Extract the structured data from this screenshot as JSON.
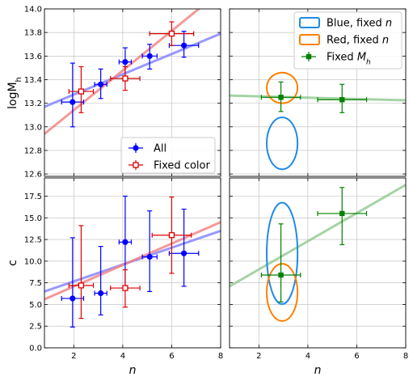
{
  "chart_data": [
    {
      "panel": "top-left",
      "type": "scatter",
      "xlim": [
        0.8,
        8
      ],
      "ylim": [
        12.58,
        14.0
      ],
      "ylabel": "logM_h",
      "xlabel": "",
      "grid": true,
      "xticks": [
        "2",
        "4",
        "6",
        "8"
      ],
      "yticks": [
        "12.6",
        "12.8",
        "13.0",
        "13.2",
        "13.4",
        "13.6",
        "13.8",
        "14.0"
      ],
      "legend_position": "lower-right",
      "legend": [
        {
          "label": "All",
          "marker": "circle-filled",
          "color": "#0000ff"
        },
        {
          "label": "Fixed color",
          "marker": "square-open",
          "color": "#dd0000"
        }
      ],
      "series": [
        {
          "name": "All",
          "color": "#0000ff",
          "marker": "circle-filled",
          "points": [
            {
              "x": 1.95,
              "y": 13.21,
              "xerr": [
                0.45,
                0.45
              ],
              "yerr": [
                0.21,
                0.33
              ]
            },
            {
              "x": 3.1,
              "y": 13.36,
              "xerr": [
                0.25,
                0.25
              ],
              "yerr": [
                0.12,
                0.13
              ]
            },
            {
              "x": 4.1,
              "y": 13.55,
              "xerr": [
                0.25,
                0.25
              ],
              "yerr": [
                0.12,
                0.12
              ]
            },
            {
              "x": 5.1,
              "y": 13.6,
              "xerr": [
                0.3,
                0.3
              ],
              "yerr": [
                0.11,
                0.1
              ]
            },
            {
              "x": 6.5,
              "y": 13.69,
              "xerr": [
                0.6,
                0.6
              ],
              "yerr": [
                0.1,
                0.12
              ]
            }
          ],
          "fit": {
            "color": "#8080ff",
            "x": [
              0.8,
              8
            ],
            "y": [
              13.17,
              13.79
            ]
          }
        },
        {
          "name": "Fixed color",
          "color": "#dd0000",
          "marker": "square-open",
          "points": [
            {
              "x": 2.3,
              "y": 13.3,
              "xerr": [
                0.5,
                0.5
              ],
              "yerr": [
                0.18,
                0.21
              ]
            },
            {
              "x": 4.1,
              "y": 13.41,
              "xerr": [
                0.6,
                0.6
              ],
              "yerr": [
                0.1,
                0.1
              ]
            },
            {
              "x": 6.0,
              "y": 13.79,
              "xerr": [
                0.9,
                0.9
              ],
              "yerr": [
                0.1,
                0.1
              ]
            }
          ],
          "fit": {
            "color": "#f08080",
            "x": [
              0.8,
              8
            ],
            "y": [
              12.94,
              14.15
            ]
          }
        }
      ]
    },
    {
      "panel": "top-right",
      "type": "scatter",
      "xlim": [
        0.8,
        8
      ],
      "ylim": [
        12.58,
        14.0
      ],
      "xlabel": "",
      "ylabel": "",
      "grid": true,
      "legend_position": "upper-right",
      "legend": [
        {
          "label": "Blue, fixed n",
          "marker": "ellipse",
          "color": "#1f8be6"
        },
        {
          "label": "Red, fixed n",
          "marker": "ellipse",
          "color": "#ff8000"
        },
        {
          "label": "Fixed M_h",
          "marker": "square-filled",
          "color": "#008000"
        }
      ],
      "contours": [
        {
          "name": "Blue, fixed n",
          "color": "#1f8be6",
          "cx": 2.95,
          "cy": 12.86,
          "rx": 1.05,
          "ry": 0.22
        },
        {
          "name": "Red, fixed n",
          "color": "#ff8000",
          "cx": 2.95,
          "cy": 13.33,
          "rx": 1.05,
          "ry": 0.13
        }
      ],
      "series": [
        {
          "name": "Fixed M_h",
          "color": "#008000",
          "marker": "square-filled",
          "points": [
            {
              "x": 2.9,
              "y": 13.25,
              "xerr": [
                0.8,
                0.8
              ],
              "yerr": [
                0.12,
                0.13
              ]
            },
            {
              "x": 5.4,
              "y": 13.23,
              "xerr": [
                1.0,
                1.0
              ],
              "yerr": [
                0.11,
                0.13
              ]
            }
          ],
          "fit": {
            "color": "#90c890",
            "x": [
              0.8,
              8
            ],
            "y": [
              13.265,
              13.225
            ]
          }
        }
      ]
    },
    {
      "panel": "bottom-left",
      "type": "scatter",
      "xlim": [
        0.8,
        8
      ],
      "ylim": [
        0,
        19.6
      ],
      "xlabel": "n",
      "ylabel": "c",
      "grid": true,
      "xticks": [
        "2",
        "4",
        "6",
        "8"
      ],
      "yticks": [
        "0.0",
        "2.5",
        "5.0",
        "7.5",
        "10.0",
        "12.5",
        "15.0",
        "17.5"
      ],
      "series": [
        {
          "name": "All",
          "color": "#0000ff",
          "marker": "circle-filled",
          "points": [
            {
              "x": 1.95,
              "y": 5.7,
              "xerr": [
                0.45,
                0.45
              ],
              "yerr": [
                3.3,
                7.0
              ]
            },
            {
              "x": 3.1,
              "y": 6.3,
              "xerr": [
                0.25,
                0.25
              ],
              "yerr": [
                2.5,
                5.4
              ]
            },
            {
              "x": 4.1,
              "y": 12.2,
              "xerr": [
                0.25,
                0.25
              ],
              "yerr": [
                5.2,
                5.3
              ]
            },
            {
              "x": 5.1,
              "y": 10.5,
              "xerr": [
                0.3,
                0.3
              ],
              "yerr": [
                4.0,
                5.3
              ]
            },
            {
              "x": 6.5,
              "y": 10.9,
              "xerr": [
                0.6,
                0.6
              ],
              "yerr": [
                3.8,
                5.1
              ]
            }
          ],
          "fit": {
            "color": "#8080ff",
            "x": [
              0.8,
              8
            ],
            "y": [
              6.5,
              13.5
            ]
          }
        },
        {
          "name": "Fixed color",
          "color": "#dd0000",
          "marker": "square-open",
          "points": [
            {
              "x": 2.3,
              "y": 7.2,
              "xerr": [
                0.5,
                0.5
              ],
              "yerr": [
                3.8,
                6.9
              ]
            },
            {
              "x": 4.1,
              "y": 6.9,
              "xerr": [
                0.6,
                0.6
              ],
              "yerr": [
                2.2,
                2.1
              ]
            },
            {
              "x": 6.0,
              "y": 13.0,
              "xerr": [
                0.8,
                0.8
              ],
              "yerr": [
                4.4,
                4.4
              ]
            }
          ],
          "fit": {
            "color": "#f08080",
            "x": [
              0.8,
              8
            ],
            "y": [
              5.6,
              14.5
            ]
          }
        }
      ]
    },
    {
      "panel": "bottom-right",
      "type": "scatter",
      "xlim": [
        0.8,
        8
      ],
      "ylim": [
        0,
        19.6
      ],
      "xlabel": "n",
      "ylabel": "",
      "grid": true,
      "xticks": [
        "2",
        "4",
        "6",
        "8"
      ],
      "contours": [
        {
          "name": "Blue, fixed n",
          "color": "#1f8be6",
          "cx": 2.95,
          "cy": 10.9,
          "rx": 1.05,
          "ry": 5.85
        },
        {
          "name": "Red, fixed n",
          "color": "#ff8000",
          "cx": 2.95,
          "cy": 6.4,
          "rx": 1.05,
          "ry": 3.3
        }
      ],
      "series": [
        {
          "name": "Fixed M_h",
          "color": "#008000",
          "marker": "square-filled",
          "points": [
            {
              "x": 2.9,
              "y": 8.4,
              "xerr": [
                0.8,
                0.8
              ],
              "yerr": [
                3.1,
                5.9
              ]
            },
            {
              "x": 5.4,
              "y": 15.5,
              "xerr": [
                1.0,
                1.0
              ],
              "yerr": [
                3.6,
                3.0
              ]
            }
          ],
          "fit": {
            "color": "#90c890",
            "x": [
              0.8,
              8
            ],
            "y": [
              7.1,
              18.8
            ]
          }
        }
      ]
    }
  ]
}
